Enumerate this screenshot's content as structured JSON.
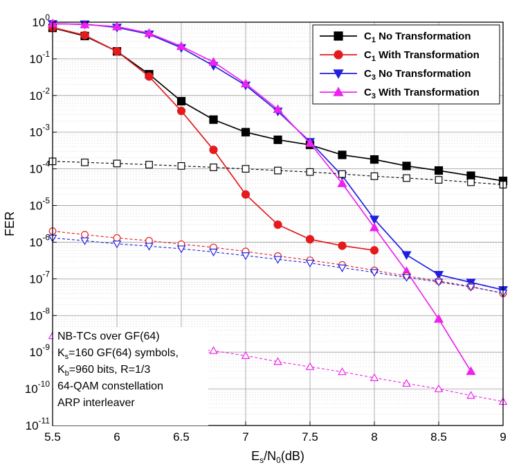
{
  "chart_data": {
    "type": "line",
    "title": "",
    "xlabel": "E_s/N_0(dB)",
    "xlabel_parts": {
      "base": "E",
      "sub": "s",
      "mid": "/N",
      "sub2": "0",
      "tail": "(dB)"
    },
    "ylabel": "FER",
    "x_ticks": [
      "5.5",
      "6",
      "6.5",
      "7",
      "7.5",
      "8",
      "8.5",
      "9"
    ],
    "y_ticks": [
      {
        "base": "10",
        "exp": "0"
      },
      {
        "base": "10",
        "exp": "-1"
      },
      {
        "base": "10",
        "exp": "-2"
      },
      {
        "base": "10",
        "exp": "-3"
      },
      {
        "base": "10",
        "exp": "-4"
      },
      {
        "base": "10",
        "exp": "-5"
      },
      {
        "base": "10",
        "exp": "-6"
      },
      {
        "base": "10",
        "exp": "-7"
      },
      {
        "base": "10",
        "exp": "-8"
      },
      {
        "base": "10",
        "exp": "-9"
      },
      {
        "base": "10",
        "exp": "-10"
      },
      {
        "base": "10",
        "exp": "-11"
      }
    ],
    "xlim": [
      5.5,
      9
    ],
    "ylim_log10": [
      -11,
      0
    ],
    "y_scale": "log",
    "grid": true,
    "legend_position": "top-right",
    "legend": [
      {
        "base": "C",
        "sub": "1",
        "text": " No Transformation",
        "color": "#000000",
        "marker": "square"
      },
      {
        "base": "C",
        "sub": "1",
        "text": " With Transformation",
        "color": "#e41a1c",
        "marker": "circle"
      },
      {
        "base": "C",
        "sub": "3",
        "text": " No Transformation",
        "color": "#1f1fe0",
        "marker": "triangle-down"
      },
      {
        "base": "C",
        "sub": "3",
        "text": " With Transformation",
        "color": "#ee22ee",
        "marker": "triangle-up"
      }
    ],
    "series": [
      {
        "color": "#000000",
        "marker": "square",
        "filled": true,
        "dashed": false,
        "x": [
          5.5,
          5.75,
          6,
          6.25,
          6.5,
          6.75,
          7,
          7.25,
          7.5,
          7.75,
          8,
          8.25,
          8.5,
          8.75,
          9
        ],
        "y": [
          0.7,
          0.42,
          0.16,
          0.038,
          0.007,
          0.0022,
          0.001,
          0.00062,
          0.00045,
          0.00024,
          0.00018,
          0.00012,
          9e-05,
          6.5e-05,
          4.7e-05
        ]
      },
      {
        "color": "#e41a1c",
        "marker": "circle",
        "filled": true,
        "dashed": false,
        "x": [
          5.5,
          5.75,
          6,
          6.25,
          6.5,
          6.75,
          7,
          7.25,
          7.5,
          7.75,
          8
        ],
        "y": [
          0.72,
          0.44,
          0.16,
          0.033,
          0.0038,
          0.00033,
          2e-05,
          3e-06,
          1.2e-06,
          8e-07,
          6e-07
        ]
      },
      {
        "color": "#1f1fe0",
        "marker": "triangle-down",
        "filled": true,
        "dashed": false,
        "x": [
          5.5,
          5.75,
          6,
          6.25,
          6.5,
          6.75,
          7,
          7.25,
          7.5,
          7.75,
          8,
          8.25,
          8.5,
          8.75,
          9
        ],
        "y": [
          0.9,
          0.88,
          0.72,
          0.47,
          0.2,
          0.065,
          0.019,
          0.0037,
          0.00055,
          6.5e-05,
          4.2e-06,
          4.5e-07,
          1.3e-07,
          8e-08,
          5e-08
        ]
      },
      {
        "color": "#ee22ee",
        "marker": "triangle-up",
        "filled": true,
        "dashed": false,
        "x": [
          5.5,
          5.75,
          6,
          6.25,
          6.5,
          6.75,
          7,
          7.25,
          7.5,
          7.75,
          8,
          8.25,
          8.5,
          8.75
        ],
        "y": [
          0.92,
          0.86,
          0.76,
          0.5,
          0.22,
          0.082,
          0.021,
          0.0042,
          0.0005,
          4e-05,
          2.5e-06,
          1.6e-07,
          8e-09,
          3e-10
        ]
      },
      {
        "color": "#000000",
        "marker": "square",
        "filled": false,
        "dashed": true,
        "x": [
          5.5,
          5.75,
          6,
          6.25,
          6.5,
          6.75,
          7,
          7.25,
          7.5,
          7.75,
          8,
          8.25,
          8.5,
          8.75,
          9
        ],
        "y": [
          0.00016,
          0.00015,
          0.00014,
          0.00013,
          0.00012,
          0.00011,
          0.0001,
          9e-05,
          8.2e-05,
          7.2e-05,
          6.3e-05,
          5.6e-05,
          5e-05,
          4.3e-05,
          3.7e-05
        ]
      },
      {
        "color": "#e41a1c",
        "marker": "circle",
        "filled": false,
        "dashed": true,
        "x": [
          5.5,
          5.75,
          6,
          6.25,
          6.5,
          6.75,
          7,
          7.25,
          7.5,
          7.75,
          8,
          8.25,
          8.5,
          8.75,
          9
        ],
        "y": [
          2e-06,
          1.6e-06,
          1.3e-06,
          1.1e-06,
          8.8e-07,
          7.2e-07,
          5.6e-07,
          4.2e-07,
          3.2e-07,
          2.4e-07,
          1.7e-07,
          1.2e-07,
          8.7e-08,
          6.2e-08,
          4e-08
        ]
      },
      {
        "color": "#1f1fe0",
        "marker": "triangle-down",
        "filled": false,
        "dashed": true,
        "x": [
          5.5,
          5.75,
          6,
          6.25,
          6.5,
          6.75,
          7,
          7.25,
          7.5,
          7.75,
          8,
          8.25,
          8.5,
          8.75,
          9
        ],
        "y": [
          1.3e-06,
          1.1e-06,
          9e-07,
          7.8e-07,
          6.6e-07,
          5.4e-07,
          4.3e-07,
          3.4e-07,
          2.7e-07,
          2e-07,
          1.5e-07,
          1.1e-07,
          8.2e-08,
          6e-08,
          4.1e-08
        ]
      },
      {
        "color": "#ee22ee",
        "marker": "triangle-up",
        "filled": false,
        "dashed": true,
        "x": [
          5.5,
          5.75,
          6,
          6.75,
          7,
          7.25,
          7.5,
          7.75,
          8,
          8.25,
          8.5,
          8.75,
          9
        ],
        "y": [
          2.8e-09,
          2.4e-09,
          2e-09,
          1.1e-09,
          8e-10,
          5.5e-10,
          4e-10,
          2.9e-10,
          2e-10,
          1.4e-10,
          1e-10,
          6.6e-11,
          4.5e-11
        ]
      }
    ],
    "annotation_lines": [
      "NB-TCs over GF(64)",
      {
        "base": "K",
        "sub": "s",
        "text": "=160 GF(64) symbols,"
      },
      {
        "base": "K",
        "sub": "b",
        "text": "=960 bits, R=1/3"
      },
      "64-QAM constellation",
      "ARP interleaver"
    ]
  }
}
